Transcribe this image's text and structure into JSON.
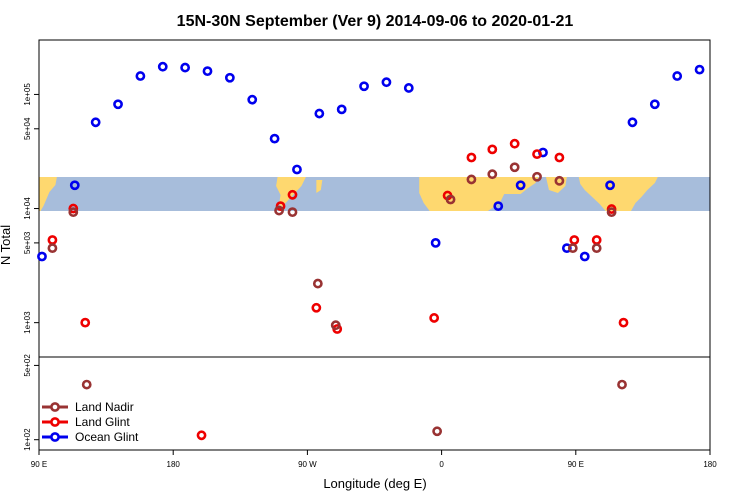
{
  "chart_data": {
    "type": "scatter",
    "title": "15N-30N September (Ver 9)   2014-09-06 to 2020-01-21",
    "xlabel": "Longitude (deg E)",
    "ylabel": "N Total",
    "x_ticks": [
      {
        "value": 90,
        "label": "90 E"
      },
      {
        "value": 180,
        "label": "180"
      },
      {
        "value": 270,
        "label": "90 W"
      },
      {
        "value": 360,
        "label": "0"
      },
      {
        "value": 450,
        "label": "90 E"
      },
      {
        "value": 540,
        "label": "180"
      }
    ],
    "xlim": [
      90,
      540
    ],
    "y_scale": "log",
    "upper_panel": {
      "ylim": [
        500,
        300000
      ],
      "y_ticks": [
        {
          "value": 1000,
          "label": "1e+03"
        },
        {
          "value": 5000,
          "label": "5e+03"
        },
        {
          "value": 10000,
          "label": "1e+04"
        },
        {
          "value": 50000,
          "label": "5e+04"
        },
        {
          "value": 100000,
          "label": "1e+05"
        }
      ],
      "land_band": {
        "lat_range": [
          15,
          30
        ],
        "ocean_color": "#a7bddb",
        "land_color": "#fed86f"
      }
    },
    "lower_panel": {
      "ylim": [
        8,
        60
      ],
      "y_ticks": [
        {
          "value": 10,
          "label": "1e+02"
        },
        {
          "value": 50,
          "label": "5e+02"
        }
      ]
    },
    "legend": {
      "position": "bottom-left",
      "entries": [
        {
          "name": "Land Nadir",
          "color": "#993333"
        },
        {
          "name": "Land Glint",
          "color": "#ee0000"
        },
        {
          "name": "Ocean Glint",
          "color": "#0000ee"
        }
      ]
    },
    "series": [
      {
        "name": "Ocean Glint",
        "color": "#0000ee",
        "points": [
          {
            "x": 92,
            "y": 3800
          },
          {
            "x": 114,
            "y": 16000
          },
          {
            "x": 128,
            "y": 57000
          },
          {
            "x": 143,
            "y": 82000
          },
          {
            "x": 158,
            "y": 145000
          },
          {
            "x": 173,
            "y": 175000
          },
          {
            "x": 188,
            "y": 172000
          },
          {
            "x": 203,
            "y": 160000
          },
          {
            "x": 218,
            "y": 140000
          },
          {
            "x": 233,
            "y": 90000
          },
          {
            "x": 248,
            "y": 41000
          },
          {
            "x": 263,
            "y": 22000
          },
          {
            "x": 278,
            "y": 68000
          },
          {
            "x": 293,
            "y": 74000
          },
          {
            "x": 308,
            "y": 118000
          },
          {
            "x": 323,
            "y": 128000
          },
          {
            "x": 338,
            "y": 114000
          },
          {
            "x": 356,
            "y": 5000
          },
          {
            "x": 398,
            "y": 10500
          },
          {
            "x": 413,
            "y": 16000
          },
          {
            "x": 428,
            "y": 31000
          },
          {
            "x": 444,
            "y": 4500
          },
          {
            "x": 456,
            "y": 3800
          },
          {
            "x": 473,
            "y": 16000
          },
          {
            "x": 488,
            "y": 57000
          },
          {
            "x": 503,
            "y": 82000
          },
          {
            "x": 518,
            "y": 145000
          },
          {
            "x": 533,
            "y": 165000
          }
        ]
      },
      {
        "name": "Land Glint",
        "color": "#ee0000",
        "points": [
          {
            "x": 99,
            "y": 5300
          },
          {
            "x": 113,
            "y": 10000
          },
          {
            "x": 121,
            "y": 1000
          },
          {
            "x": 199,
            "y": 11
          },
          {
            "x": 252,
            "y": 10500
          },
          {
            "x": 260,
            "y": 13200
          },
          {
            "x": 276,
            "y": 1350
          },
          {
            "x": 290,
            "y": 880
          },
          {
            "x": 355,
            "y": 1100
          },
          {
            "x": 364,
            "y": 13000
          },
          {
            "x": 380,
            "y": 28000
          },
          {
            "x": 394,
            "y": 33000
          },
          {
            "x": 409,
            "y": 37000
          },
          {
            "x": 424,
            "y": 30000
          },
          {
            "x": 439,
            "y": 28000
          },
          {
            "x": 449,
            "y": 5300
          },
          {
            "x": 464,
            "y": 5300
          },
          {
            "x": 474,
            "y": 9900
          },
          {
            "x": 482,
            "y": 1000
          }
        ]
      },
      {
        "name": "Land Nadir",
        "color": "#993333",
        "points": [
          {
            "x": 99,
            "y": 4500
          },
          {
            "x": 113,
            "y": 9300
          },
          {
            "x": 122,
            "y": 33
          },
          {
            "x": 251,
            "y": 9600
          },
          {
            "x": 260,
            "y": 9300
          },
          {
            "x": 277,
            "y": 2200
          },
          {
            "x": 289,
            "y": 950
          },
          {
            "x": 357,
            "y": 12
          },
          {
            "x": 366,
            "y": 12000
          },
          {
            "x": 380,
            "y": 18000
          },
          {
            "x": 394,
            "y": 20000
          },
          {
            "x": 409,
            "y": 23000
          },
          {
            "x": 424,
            "y": 19000
          },
          {
            "x": 439,
            "y": 17500
          },
          {
            "x": 448,
            "y": 4500
          },
          {
            "x": 464,
            "y": 4500
          },
          {
            "x": 474,
            "y": 9300
          },
          {
            "x": 481,
            "y": 33
          }
        ]
      }
    ]
  }
}
